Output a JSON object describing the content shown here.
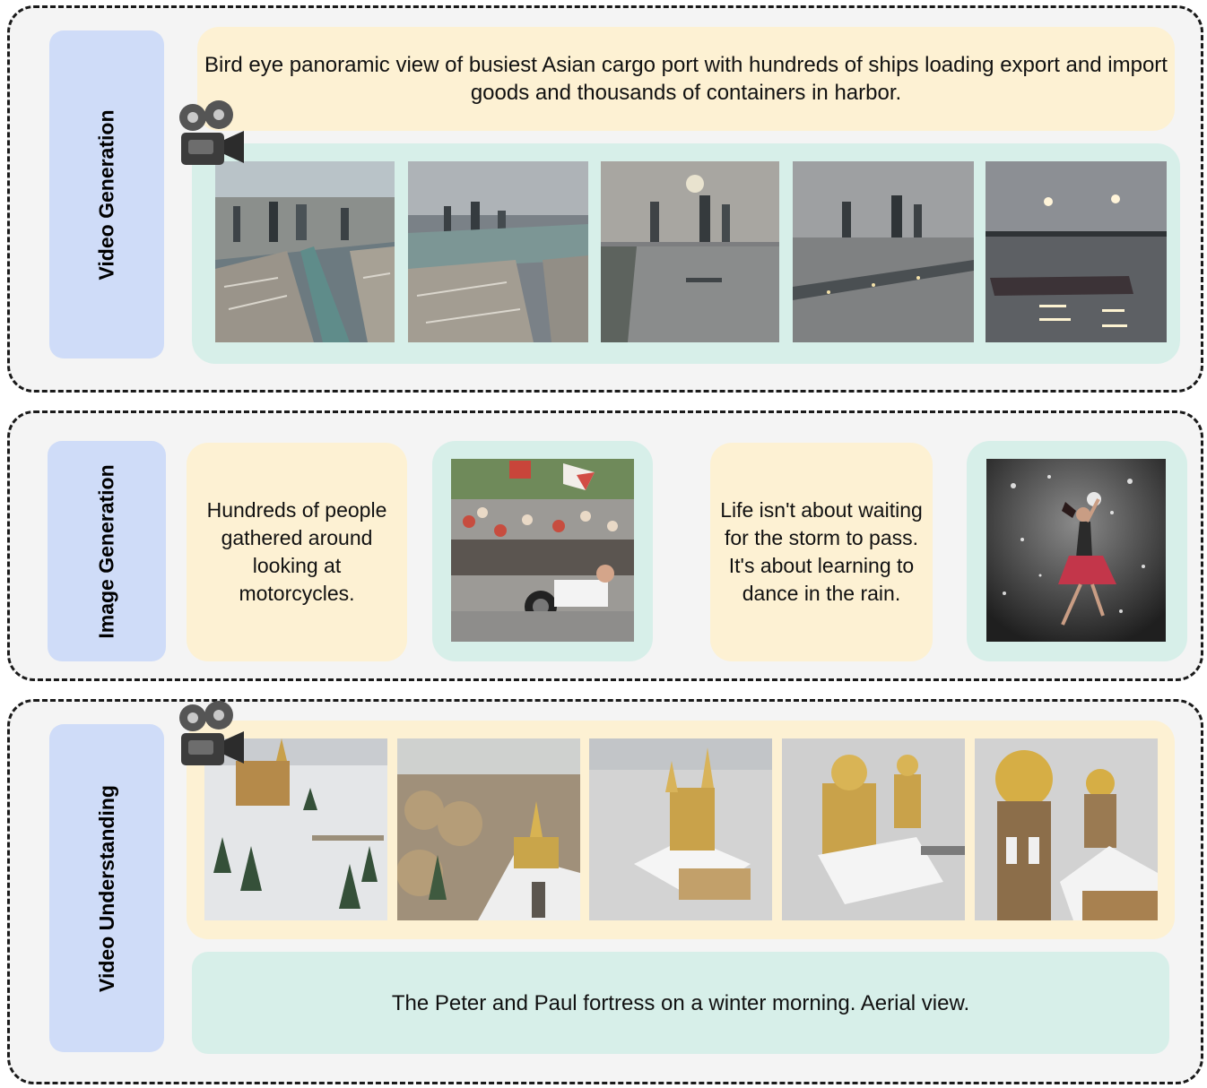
{
  "panels": {
    "video_generation": {
      "label": "Video Generation",
      "prompt": "Bird eye panoramic view of busiest Asian cargo port with hundreds of ships loading export and import goods and thousands of containers in harbor.",
      "icon": "movie-camera-icon"
    },
    "image_generation": {
      "label": "Image Generation",
      "prompt_1": "Hundreds of people gathered around looking at motorcycles.",
      "prompt_2": "Life isn't about waiting for the storm to pass. It's about learning to dance in the rain."
    },
    "video_understanding": {
      "label": "Video Understanding",
      "caption": "The Peter and Paul fortress on a winter morning. Aerial view.",
      "icon": "movie-camera-icon"
    }
  },
  "colors": {
    "label_bg": "#cfdcf8",
    "yellow_box": "#fdf1d3",
    "teal_box": "#d7efe9",
    "panel_bg": "#f4f4f4"
  }
}
